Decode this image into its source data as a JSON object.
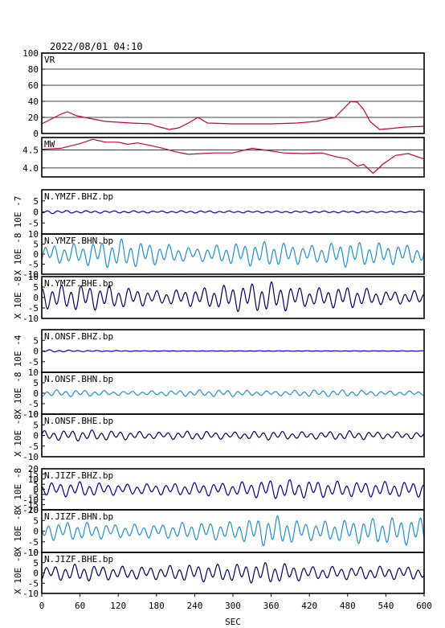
{
  "title": "2022/08/01 04:10",
  "xaxis": {
    "label": "SEC",
    "range": [
      0,
      600
    ],
    "ticks": [
      "0",
      "60",
      "120",
      "180",
      "240",
      "300",
      "360",
      "420",
      "480",
      "540",
      "600"
    ]
  },
  "chart_data": [
    {
      "type": "line",
      "label": "VR",
      "ylim": [
        0,
        100
      ],
      "ticks": [
        "100",
        "80",
        "60",
        "40",
        "20",
        "0"
      ],
      "grid": true,
      "color": "#c8003c",
      "x": [
        0,
        15,
        30,
        40,
        55,
        80,
        100,
        120,
        140,
        170,
        180,
        200,
        215,
        230,
        245,
        260,
        300,
        360,
        400,
        430,
        460,
        475,
        485,
        495,
        505,
        515,
        530,
        545,
        570,
        600
      ],
      "values": [
        12,
        18,
        24,
        27,
        22,
        18,
        15,
        14,
        13,
        12,
        9,
        5,
        7,
        13,
        20,
        13,
        12,
        12,
        13,
        15,
        20,
        32,
        40,
        39,
        30,
        15,
        5,
        6,
        8,
        9
      ]
    },
    {
      "type": "line",
      "label": "MW",
      "ylim": [
        3.75,
        4.85
      ],
      "ticks": [
        "4.5",
        "4.0"
      ],
      "grid": true,
      "color": "#c8003c",
      "x": [
        0,
        30,
        60,
        80,
        100,
        120,
        135,
        150,
        170,
        190,
        210,
        230,
        250,
        270,
        300,
        330,
        350,
        380,
        410,
        440,
        460,
        480,
        495,
        505,
        520,
        535,
        555,
        575,
        600
      ],
      "values": [
        4.52,
        4.55,
        4.68,
        4.8,
        4.72,
        4.72,
        4.66,
        4.7,
        4.63,
        4.55,
        4.45,
        4.38,
        4.4,
        4.42,
        4.42,
        4.55,
        4.5,
        4.42,
        4.4,
        4.42,
        4.32,
        4.25,
        4.05,
        4.1,
        3.85,
        4.1,
        4.35,
        4.4,
        4.25
      ]
    },
    {
      "type": "line",
      "label": "N.YMZF.BHZ.bp",
      "exponent": "10E -7",
      "ylim": [
        -10,
        10
      ],
      "ticks": [
        "5",
        "0",
        "-5"
      ],
      "color": "#0000c8",
      "amp": [
        0.8,
        0.5,
        0.5,
        0.4,
        0.5,
        0.4,
        0.4,
        0.4,
        0.4,
        0.3,
        0.3
      ]
    },
    {
      "type": "line",
      "label": "N.YMZF.BHN.bp",
      "exponent": "X 10E -8",
      "ylim": [
        -10,
        10
      ],
      "ticks": [
        "10",
        "5",
        "0",
        "-5",
        "-10"
      ],
      "color": "#1e90d2",
      "amp": [
        4,
        5,
        7,
        5,
        3,
        5,
        6,
        4,
        6,
        5,
        4
      ]
    },
    {
      "type": "line",
      "label": "N.YMZF.BHE.bp",
      "exponent": "X 10E -8",
      "ylim": [
        -10,
        10
      ],
      "ticks": [
        "10",
        "5",
        "0",
        "-5",
        "-10"
      ],
      "color": "#000064",
      "amp": [
        5,
        6,
        5,
        3,
        4,
        6,
        7,
        4,
        5,
        3,
        3
      ]
    },
    {
      "type": "line",
      "label": "N.ONSF.BHZ.bp",
      "exponent": "10E -4",
      "ylim": [
        -10,
        10
      ],
      "ticks": [
        "5",
        "0",
        "-5"
      ],
      "color": "#0000c8",
      "amp": [
        0.6,
        0.3,
        0.2,
        0.1,
        0.1,
        0.1,
        0.1,
        0.1,
        0.1,
        0.1,
        0.1
      ]
    },
    {
      "type": "line",
      "label": "N.ONSF.BHN.bp",
      "exponent": "X 10E -8",
      "ylim": [
        -10,
        10
      ],
      "ticks": [
        "10",
        "5",
        "0",
        "-5",
        "-10"
      ],
      "color": "#1e90d2",
      "amp": [
        1.5,
        1.5,
        1,
        1,
        1.5,
        1.5,
        1,
        1.5,
        1.5,
        1,
        1
      ]
    },
    {
      "type": "line",
      "label": "N.ONSF.BHE.bp",
      "exponent": "X 10E -8",
      "ylim": [
        -10,
        10
      ],
      "ticks": [
        "10",
        "5",
        "0",
        "-5",
        "-10"
      ],
      "color": "#000064",
      "amp": [
        2,
        2.5,
        2,
        1.5,
        2,
        1.5,
        2,
        1.5,
        2,
        1.5,
        1.5
      ]
    },
    {
      "type": "line",
      "label": "N.JIZF.BHZ.bp",
      "exponent": "X 10E -8",
      "ylim": [
        -20,
        20
      ],
      "ticks": [
        "20",
        "15",
        "10",
        "5",
        "0",
        "-5",
        "-10",
        "-15",
        "-20"
      ],
      "color": "#000096",
      "amp": [
        6,
        7,
        5,
        5,
        6,
        6,
        9,
        8,
        7,
        7,
        7
      ]
    },
    {
      "type": "line",
      "label": "N.JIZF.BHN.bp",
      "exponent": "X 10E -8",
      "ylim": [
        -10,
        10
      ],
      "ticks": [
        "10",
        "5",
        "0",
        "-5",
        "-10"
      ],
      "color": "#1e90d2",
      "amp": [
        4,
        4,
        3,
        3,
        4,
        4,
        7,
        4,
        5,
        6,
        6
      ]
    },
    {
      "type": "line",
      "label": "N.JIZF.BHE.bp",
      "exponent": "X 10E -8",
      "ylim": [
        -10,
        10
      ],
      "ticks": [
        "10",
        "5",
        "0",
        "-5",
        "-10"
      ],
      "color": "#000064",
      "amp": [
        3,
        4,
        3,
        3,
        4,
        4,
        5,
        3,
        3,
        3,
        3
      ]
    }
  ]
}
